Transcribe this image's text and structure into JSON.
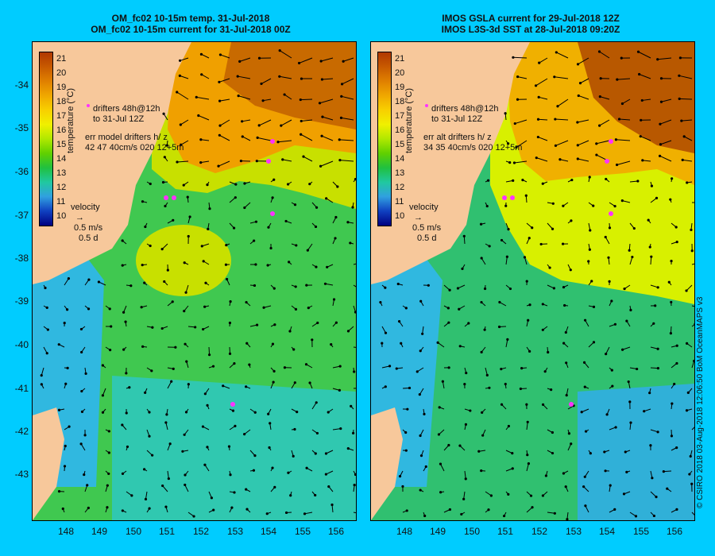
{
  "left_panel": {
    "title_line1": "OM_fc02 10-15m temp. 31-Jul-2018",
    "title_line2": "OM_fc02 10-15m current for 31-Jul-2018 00Z",
    "legend_drifters_line1": "drifters 48h@12h",
    "legend_drifters_line2": "to 31-Jul 12Z",
    "legend_err_line1": "err model drifters h/ z",
    "legend_err_line2": "42 47 40cm/s 020 12+5m"
  },
  "right_panel": {
    "title_line1": "IMOS GSLA current for 29-Jul-2018 12Z",
    "title_line2": "IMOS L3S-3d SST at 28-Jul-2018 09:20Z",
    "legend_drifters_line1": "drifters 48h@12h",
    "legend_drifters_line2": "to 31-Jul 12Z",
    "legend_err_line1": "err alt drifters h/ z",
    "legend_err_line2": "34 35 40cm/s 020 12+5m"
  },
  "velocity_legend": {
    "title": "velocity",
    "speed": "0.5 m/s",
    "duration": "0.5 d"
  },
  "colorbar": {
    "title": "temperature (°C)",
    "ticks": [
      "21",
      "20",
      "19",
      "18",
      "17",
      "16",
      "15",
      "14",
      "13",
      "12",
      "11",
      "10"
    ],
    "colors": [
      "#b03800",
      "#c85a00",
      "#e08000",
      "#f0a800",
      "#f8d000",
      "#f0f000",
      "#b0e800",
      "#60d000",
      "#20c040",
      "#20c8a0",
      "#30a0e0",
      "#1040c0",
      "#000080"
    ]
  },
  "lat_labels": [
    "-34",
    "-35",
    "-36",
    "-37",
    "-38",
    "-39",
    "-40",
    "-41",
    "-42",
    "-43"
  ],
  "lon_labels": [
    "148",
    "149",
    "150",
    "151",
    "152",
    "153",
    "154",
    "155",
    "156"
  ],
  "credit": "© CSIRO 2018   03-Aug-2018 12:06:50 BoM OceanMAPS v3",
  "colors": {
    "background": "#00ccff",
    "land": "#f7c89b",
    "drifter": "#ff33ff"
  }
}
